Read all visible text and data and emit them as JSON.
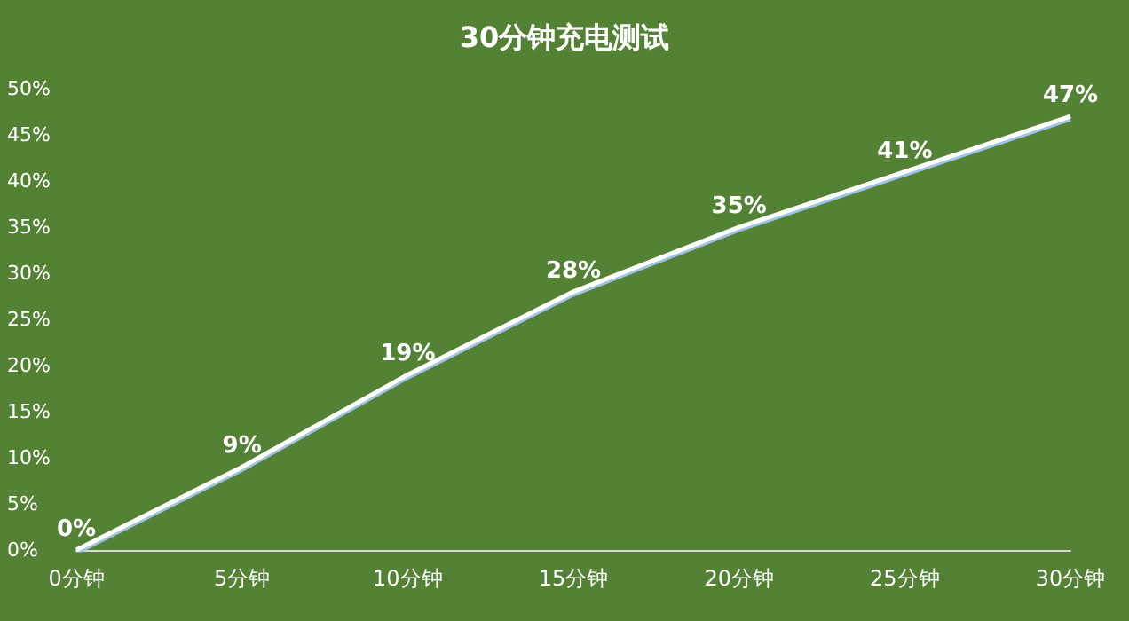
{
  "chart_data": {
    "type": "line",
    "title": "30分钟充电测试",
    "categories": [
      "0分钟",
      "5分钟",
      "10分钟",
      "15分钟",
      "20分钟",
      "25分钟",
      "30分钟"
    ],
    "series": [
      {
        "color": "#ffffff",
        "values": [
          0,
          9,
          19,
          28,
          35,
          41,
          47
        ],
        "value_labels": [
          "0%",
          "9%",
          "19%",
          "28%",
          "35%",
          "41%",
          "47%"
        ]
      }
    ],
    "ylim": [
      0,
      50
    ],
    "yticks": [
      {
        "value": 0,
        "label": "0%"
      },
      {
        "value": 5,
        "label": "5%"
      },
      {
        "value": 10,
        "label": "10%"
      },
      {
        "value": 15,
        "label": "15%"
      },
      {
        "value": 20,
        "label": "20%"
      },
      {
        "value": 25,
        "label": "25%"
      },
      {
        "value": 30,
        "label": "30%"
      },
      {
        "value": 35,
        "label": "35%"
      },
      {
        "value": 40,
        "label": "40%"
      },
      {
        "value": 45,
        "label": "45%"
      },
      {
        "value": 50,
        "label": "50%"
      }
    ],
    "grid": false,
    "marker": "none",
    "line_style": "solid"
  }
}
